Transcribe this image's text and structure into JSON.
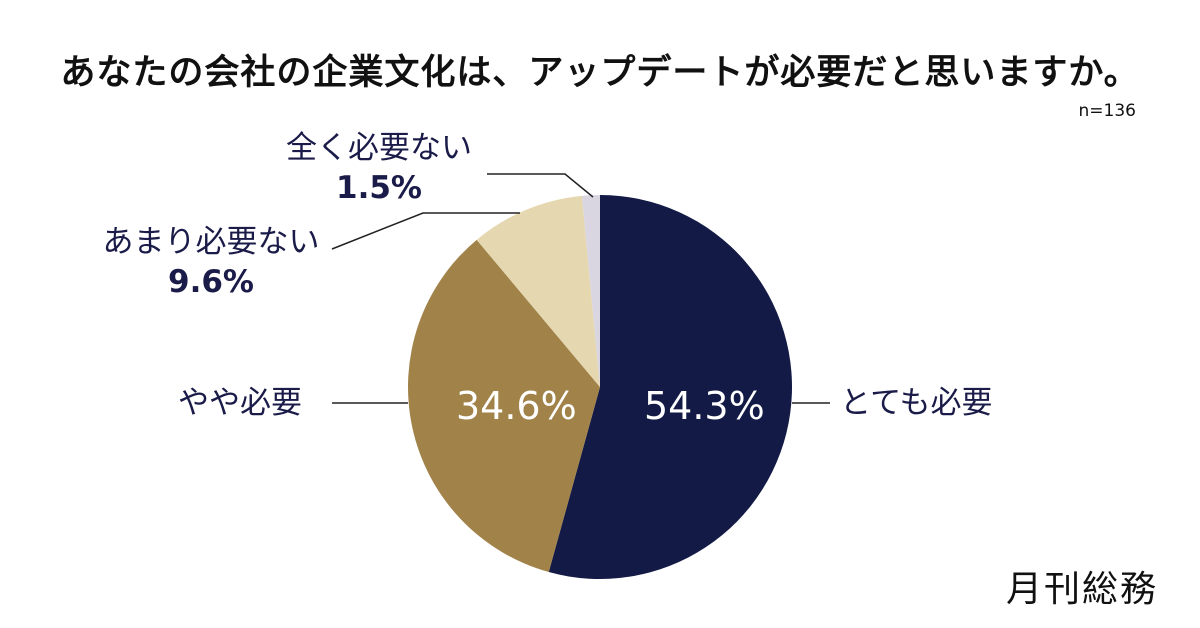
{
  "title": "あなたの会社の企業文化は、アップデートが必要だと思いますか。",
  "sample_size": "n=136",
  "logo": "月刊総務",
  "colors": {
    "very_needed": "#121a45",
    "somewhat_needed": "#a1834a",
    "not_very_needed": "#e5d8b0",
    "not_at_all": "#d9d6e2",
    "label_text": "#1a1b48"
  },
  "labels": {
    "very_needed": {
      "name": "とても必要",
      "pct": "54.3%"
    },
    "somewhat_needed": {
      "name": "やや必要",
      "pct": "34.6%"
    },
    "not_very_needed": {
      "name": "あまり必要ない",
      "pct": "9.6%"
    },
    "not_at_all": {
      "name": "全く必要ない",
      "pct": "1.5%"
    }
  },
  "chart_data": {
    "type": "pie",
    "title": "あなたの会社の企業文化は、アップデートが必要だと思いますか。",
    "subtitle": "n=136",
    "categories": [
      "とても必要",
      "やや必要",
      "あまり必要ない",
      "全く必要ない"
    ],
    "values": [
      54.3,
      34.6,
      9.6,
      1.5
    ],
    "unit": "%",
    "start_angle": "12 o'clock, clockwise",
    "legend": "none (callout labels)"
  }
}
